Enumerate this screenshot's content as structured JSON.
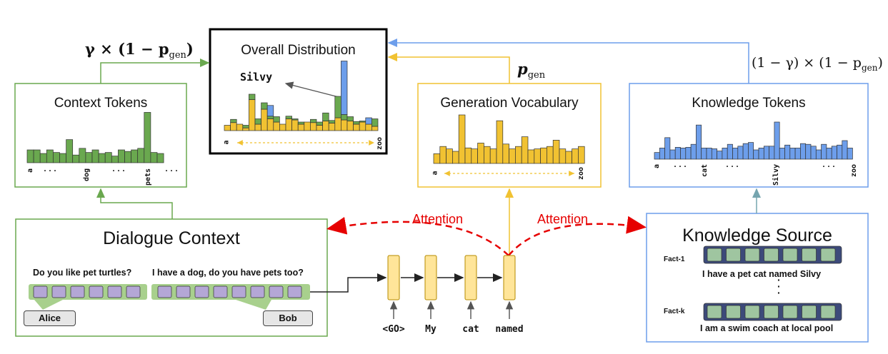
{
  "formulas": {
    "context_weight": "γ × (1 − p",
    "context_weight_sub": "gen",
    "context_weight_close": ")",
    "gen_weight": "p",
    "gen_weight_sub": "gen",
    "knowledge_weight": "(1 − γ) × (1 − p",
    "knowledge_weight_sub": "gen",
    "knowledge_weight_close": ")"
  },
  "overall": {
    "title": "Overall Distribution",
    "pointer_label": "Silvy",
    "axis_start": "a",
    "axis_end": "zoo",
    "bars": [
      {
        "yellow": 0.1,
        "green": 0.0,
        "blue": 0.0
      },
      {
        "yellow": 0.15,
        "green": 0.06,
        "blue": 0.0
      },
      {
        "yellow": 0.12,
        "green": 0.0,
        "blue": 0.0
      },
      {
        "yellow": 0.05,
        "green": 0.05,
        "blue": 0.0
      },
      {
        "yellow": 0.58,
        "green": 0.1,
        "blue": 0.0
      },
      {
        "yellow": 0.12,
        "green": 0.1,
        "blue": 0.0
      },
      {
        "yellow": 0.4,
        "green": 0.12,
        "blue": 0.0
      },
      {
        "yellow": 0.22,
        "green": 0.05,
        "blue": 0.2
      },
      {
        "yellow": 0.16,
        "green": 0.1,
        "blue": 0.0
      },
      {
        "yellow": 0.12,
        "green": 0.0,
        "blue": 0.0
      },
      {
        "yellow": 0.22,
        "green": 0.05,
        "blue": 0.0
      },
      {
        "yellow": 0.2,
        "green": 0.02,
        "blue": 0.0
      },
      {
        "yellow": 0.12,
        "green": 0.04,
        "blue": 0.0
      },
      {
        "yellow": 0.16,
        "green": 0.0,
        "blue": 0.0
      },
      {
        "yellow": 0.15,
        "green": 0.06,
        "blue": 0.0
      },
      {
        "yellow": 0.1,
        "green": 0.06,
        "blue": 0.0
      },
      {
        "yellow": 0.18,
        "green": 0.15,
        "blue": 0.0
      },
      {
        "yellow": 0.14,
        "green": 0.05,
        "blue": 0.0
      },
      {
        "yellow": 0.24,
        "green": 0.4,
        "blue": 0.0
      },
      {
        "yellow": 0.2,
        "green": 0.1,
        "blue": 1.0
      },
      {
        "yellow": 0.18,
        "green": 0.08,
        "blue": 0.0
      },
      {
        "yellow": 0.12,
        "green": 0.05,
        "blue": 0.0
      },
      {
        "yellow": 0.16,
        "green": 0.02,
        "blue": 0.0
      },
      {
        "yellow": 0.12,
        "green": 0.0,
        "blue": 0.12
      },
      {
        "yellow": 0.08,
        "green": 0.14,
        "blue": 0.0
      }
    ]
  },
  "context_tokens": {
    "title": "Context Tokens",
    "tick_labels": [
      "a",
      "...",
      "dog",
      "...",
      "pets",
      "..."
    ],
    "values": [
      0.25,
      0.25,
      0.18,
      0.25,
      0.2,
      0.18,
      0.45,
      0.15,
      0.28,
      0.2,
      0.25,
      0.18,
      0.2,
      0.13,
      0.25,
      0.22,
      0.25,
      0.28,
      0.98,
      0.2,
      0.18
    ]
  },
  "generation_vocab": {
    "title": "Generation Vocabulary",
    "axis_start": "a",
    "axis_end": "zoo",
    "values": [
      0.2,
      0.35,
      0.3,
      0.25,
      1.0,
      0.32,
      0.3,
      0.42,
      0.35,
      0.3,
      0.88,
      0.4,
      0.3,
      0.35,
      0.55,
      0.28,
      0.3,
      0.32,
      0.35,
      0.48,
      0.3,
      0.25,
      0.3,
      0.35
    ]
  },
  "knowledge_tokens": {
    "title": "Knowledge Tokens",
    "tick_labels": [
      "a",
      "...",
      "cat",
      "...",
      "Silvy",
      "...",
      "zoo"
    ],
    "values": [
      0.18,
      0.3,
      0.58,
      0.25,
      0.32,
      0.3,
      0.32,
      0.4,
      0.92,
      0.3,
      0.3,
      0.28,
      0.22,
      0.3,
      0.4,
      0.3,
      0.35,
      0.42,
      0.45,
      0.25,
      0.3,
      0.35,
      0.35,
      1.0,
      0.3,
      0.38,
      0.3,
      0.3,
      0.42,
      0.4,
      0.35,
      0.25,
      0.4,
      0.3,
      0.35,
      0.38,
      0.5,
      0.3
    ]
  },
  "dialogue": {
    "title": "Dialogue Context",
    "utterance_1": "Do you like pet turtles?",
    "utterance_2": "I have a dog, do you have pets too?",
    "speaker_1": "Alice",
    "speaker_2": "Bob"
  },
  "knowledge_source": {
    "title": "Knowledge Source",
    "fact_1_label": "Fact-1",
    "fact_1_text": "I have a pet cat named Silvy",
    "vertical_ellipsis": "·\n·\n·",
    "fact_k_label": "Fact-k",
    "fact_k_text": "I am a swim coach at local pool"
  },
  "decoder": {
    "tokens": [
      "<GO>",
      "My",
      "cat",
      "named"
    ]
  },
  "attention": {
    "left_label": "Attention",
    "right_label": "Attention"
  },
  "colors": {
    "green": "#6aa84f",
    "yellow": "#f1c232",
    "blue": "#6d9eeb",
    "purple": "#b4a7d6",
    "red": "#e60000"
  }
}
